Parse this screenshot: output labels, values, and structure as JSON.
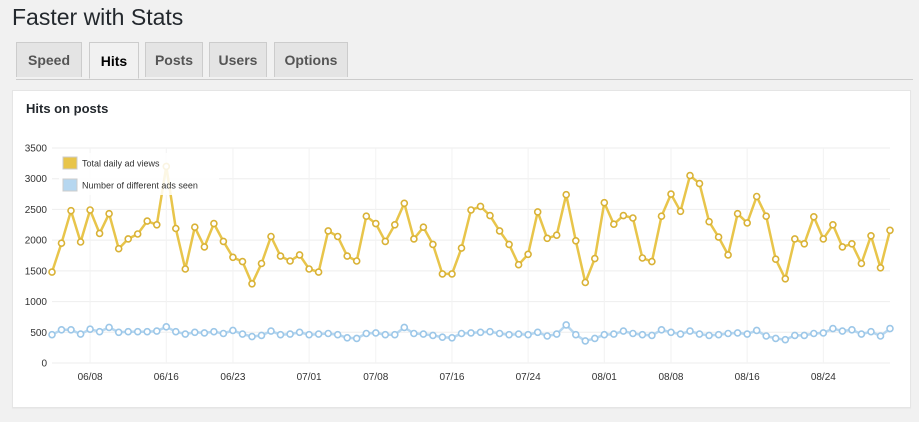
{
  "page": {
    "title": "Faster with Stats"
  },
  "tabs": [
    {
      "label": "Speed",
      "active": false
    },
    {
      "label": "Hits",
      "active": true
    },
    {
      "label": "Posts",
      "active": false
    },
    {
      "label": "Users",
      "active": false
    },
    {
      "label": "Options",
      "active": false
    }
  ],
  "panel": {
    "title": "Hits on posts"
  },
  "colors": {
    "views": "#e8c54b",
    "ads": "#b6d7f0"
  },
  "chart_data": {
    "type": "line",
    "title": "",
    "xlabel": "",
    "ylabel": "",
    "ylim": [
      0,
      3500
    ],
    "yticks": [
      0,
      500,
      1000,
      1500,
      2000,
      2500,
      3000,
      3500
    ],
    "grid": true,
    "legend_position": "top-left",
    "x_start": "06/04",
    "x_tick_labels": [
      "06/08",
      "06/16",
      "06/23",
      "07/01",
      "07/08",
      "07/16",
      "07/24",
      "08/01",
      "08/08",
      "08/16",
      "08/24"
    ],
    "x_tick_index": [
      4,
      12,
      19,
      27,
      34,
      42,
      50,
      58,
      65,
      73,
      81
    ],
    "series": [
      {
        "name": "Total daily ad views",
        "values": [
          1480,
          1950,
          2480,
          1970,
          2490,
          2110,
          2430,
          1860,
          2020,
          2100,
          2310,
          2250,
          3200,
          2190,
          1530,
          2210,
          1890,
          2270,
          1980,
          1720,
          1650,
          1290,
          1620,
          2060,
          1740,
          1660,
          1760,
          1530,
          1480,
          2150,
          2060,
          1740,
          1660,
          2390,
          2270,
          1980,
          2250,
          2600,
          2020,
          2210,
          1930,
          1450,
          1450,
          1870,
          2490,
          2550,
          2400,
          2150,
          1930,
          1600,
          1770,
          2460,
          2030,
          2080,
          2740,
          1990,
          1310,
          1700,
          2610,
          2260,
          2400,
          2360,
          1710,
          1650,
          2390,
          2750,
          2470,
          3050,
          2920,
          2300,
          2050,
          1760,
          2430,
          2280,
          2710,
          2390,
          1690,
          1370,
          2020,
          1940,
          2380,
          2020,
          2250,
          1890,
          1940,
          1620,
          2070,
          1550,
          2160
        ]
      },
      {
        "name": "Number of different ads seen",
        "values": [
          460,
          540,
          540,
          470,
          550,
          510,
          580,
          500,
          510,
          510,
          510,
          520,
          590,
          510,
          470,
          500,
          490,
          510,
          480,
          530,
          470,
          430,
          450,
          520,
          460,
          470,
          500,
          460,
          470,
          480,
          460,
          410,
          400,
          480,
          490,
          460,
          460,
          580,
          480,
          470,
          450,
          420,
          410,
          480,
          490,
          500,
          510,
          480,
          460,
          470,
          460,
          500,
          440,
          470,
          620,
          460,
          360,
          400,
          460,
          470,
          520,
          480,
          460,
          450,
          540,
          500,
          470,
          520,
          470,
          450,
          460,
          480,
          490,
          470,
          530,
          440,
          400,
          380,
          450,
          450,
          480,
          490,
          560,
          520,
          540,
          470,
          510,
          440,
          560
        ]
      }
    ]
  }
}
